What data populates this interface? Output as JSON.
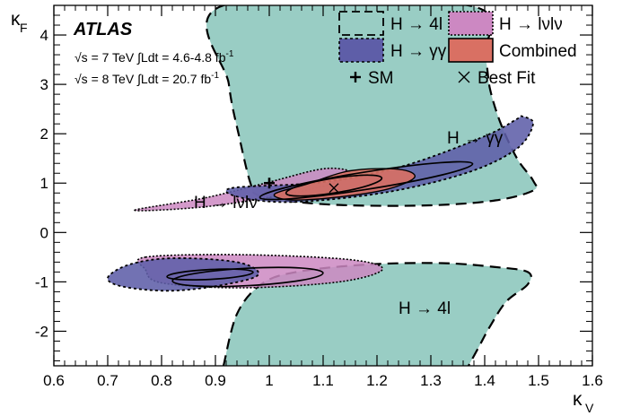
{
  "chart_data": {
    "type": "contour",
    "title": "",
    "xlabel": "κ",
    "xlabel_sub": "V",
    "ylabel": "κ",
    "ylabel_sub": "F",
    "xlim": [
      0.6,
      1.6
    ],
    "ylim": [
      -2.7,
      4.6
    ],
    "x_ticks": [
      0.6,
      0.7,
      0.8,
      0.9,
      1.0,
      1.1,
      1.2,
      1.3,
      1.4,
      1.5,
      1.6
    ],
    "x_tick_labels": [
      "0.6",
      "0.7",
      "0.8",
      "0.9",
      "1",
      "1.1",
      "1.2",
      "1.3",
      "1.4",
      "1.5",
      "1.6"
    ],
    "y_ticks": [
      -2,
      -1,
      0,
      1,
      2,
      3,
      4
    ],
    "y_tick_labels": [
      "-2",
      "-1",
      "0",
      "1",
      "2",
      "3",
      "4"
    ],
    "atlas_label": "ATLAS",
    "lumi_lines": [
      "√s = 7 TeV ∫Ldt = 4.6-4.8 fb",
      "√s = 8 TeV ∫Ldt = 20.7 fb"
    ],
    "lumi_superscript": "-1",
    "legend": {
      "placement": "top-right",
      "entries": [
        {
          "label": "H → 4l",
          "key": "h4l"
        },
        {
          "label": "H → lνlν",
          "key": "hww"
        },
        {
          "label": "H → γγ",
          "key": "hgg"
        },
        {
          "label": "Combined",
          "key": "comb"
        },
        {
          "label": "SM",
          "key": "sm"
        },
        {
          "label": "Best Fit",
          "key": "bestfit"
        }
      ]
    },
    "annotations": [
      {
        "text": "H → γγ",
        "x": 1.33,
        "y": 1.8
      },
      {
        "text": "H → lνlν",
        "x": 0.86,
        "y": 0.5
      },
      {
        "text": "H → 4l",
        "x": 1.24,
        "y": -1.65
      }
    ],
    "sm_point": {
      "x": 1.0,
      "y": 1.0
    },
    "best_fit_point": {
      "x": 1.12,
      "y": 0.9
    },
    "colors": {
      "h4l": "#99cdc4",
      "hgg": "#5e5ea8",
      "hww": "#cc88c2",
      "comb": "#d97063"
    },
    "regions": {
      "h4l": [
        [
          [
            0.915,
            4.6
          ],
          [
            1.37,
            4.6
          ],
          [
            1.4,
            3.6
          ],
          [
            1.41,
            2.9
          ],
          [
            1.43,
            2.2
          ],
          [
            1.46,
            1.5
          ],
          [
            1.49,
            1.05
          ],
          [
            1.49,
            0.85
          ],
          [
            1.42,
            0.65
          ],
          [
            1.3,
            0.55
          ],
          [
            1.15,
            0.55
          ],
          [
            1.05,
            0.62
          ],
          [
            0.98,
            0.75
          ],
          [
            0.965,
            1.0
          ],
          [
            0.945,
            1.9
          ],
          [
            0.925,
            3.0
          ],
          [
            0.915,
            4.6
          ]
        ],
        [
          [
            0.915,
            -2.7
          ],
          [
            0.94,
            -1.65
          ],
          [
            0.985,
            -1.05
          ],
          [
            1.05,
            -0.8
          ],
          [
            1.18,
            -0.65
          ],
          [
            1.32,
            -0.62
          ],
          [
            1.42,
            -0.7
          ],
          [
            1.48,
            -0.8
          ],
          [
            1.48,
            -1.05
          ],
          [
            1.44,
            -1.4
          ],
          [
            1.41,
            -1.9
          ],
          [
            1.39,
            -2.3
          ],
          [
            1.37,
            -2.7
          ]
        ]
      ],
      "hgg": [
        [
          [
            0.93,
            0.9
          ],
          [
            1.1,
            1.02
          ],
          [
            1.25,
            1.35
          ],
          [
            1.4,
            1.95
          ],
          [
            1.46,
            2.3
          ],
          [
            1.47,
            2.35
          ],
          [
            1.49,
            2.2
          ],
          [
            1.46,
            1.7
          ],
          [
            1.37,
            1.22
          ],
          [
            1.22,
            0.82
          ],
          [
            1.05,
            0.62
          ],
          [
            0.95,
            0.7
          ],
          [
            0.93,
            0.9
          ]
        ],
        [
          [
            0.7,
            -0.92
          ],
          [
            0.74,
            -0.65
          ],
          [
            0.82,
            -0.52
          ],
          [
            0.94,
            -0.6
          ],
          [
            0.98,
            -0.85
          ],
          [
            0.92,
            -1.05
          ],
          [
            0.82,
            -1.18
          ],
          [
            0.73,
            -1.1
          ],
          [
            0.7,
            -0.92
          ]
        ]
      ],
      "hww": [
        [
          [
            0.75,
            0.45
          ],
          [
            0.88,
            0.7
          ],
          [
            1.0,
            1.02
          ],
          [
            1.08,
            1.25
          ],
          [
            1.12,
            1.3
          ],
          [
            1.15,
            1.22
          ],
          [
            1.12,
            1.0
          ],
          [
            1.02,
            0.75
          ],
          [
            0.88,
            0.52
          ],
          [
            0.75,
            0.45
          ]
        ],
        [
          [
            0.77,
            -0.5
          ],
          [
            0.95,
            -0.45
          ],
          [
            1.15,
            -0.55
          ],
          [
            1.21,
            -0.75
          ],
          [
            1.13,
            -1.0
          ],
          [
            0.95,
            -1.12
          ],
          [
            0.8,
            -1.02
          ],
          [
            0.77,
            -0.75
          ],
          [
            0.77,
            -0.5
          ]
        ]
      ],
      "comb": [
        [
          [
            1.01,
            0.78
          ],
          [
            1.07,
            0.98
          ],
          [
            1.15,
            1.25
          ],
          [
            1.24,
            1.28
          ],
          [
            1.27,
            1.12
          ],
          [
            1.22,
            0.88
          ],
          [
            1.13,
            0.72
          ],
          [
            1.04,
            0.66
          ],
          [
            1.01,
            0.78
          ]
        ]
      ]
    },
    "contours": {
      "solid_68_upper": {
        "cx": 1.12,
        "cy": 0.95,
        "rx": 0.09,
        "ry": 0.27
      },
      "solid_95_upper": {
        "cx": 1.18,
        "cy": 1.05,
        "rx": 0.2,
        "ry": 0.32
      },
      "solid_68_lower": {
        "cx": 0.89,
        "cy": -0.85,
        "rx": 0.08,
        "ry": 0.18
      },
      "solid_95_lower": {
        "cx": 0.96,
        "cy": -0.9,
        "rx": 0.14,
        "ry": 0.32
      }
    }
  }
}
